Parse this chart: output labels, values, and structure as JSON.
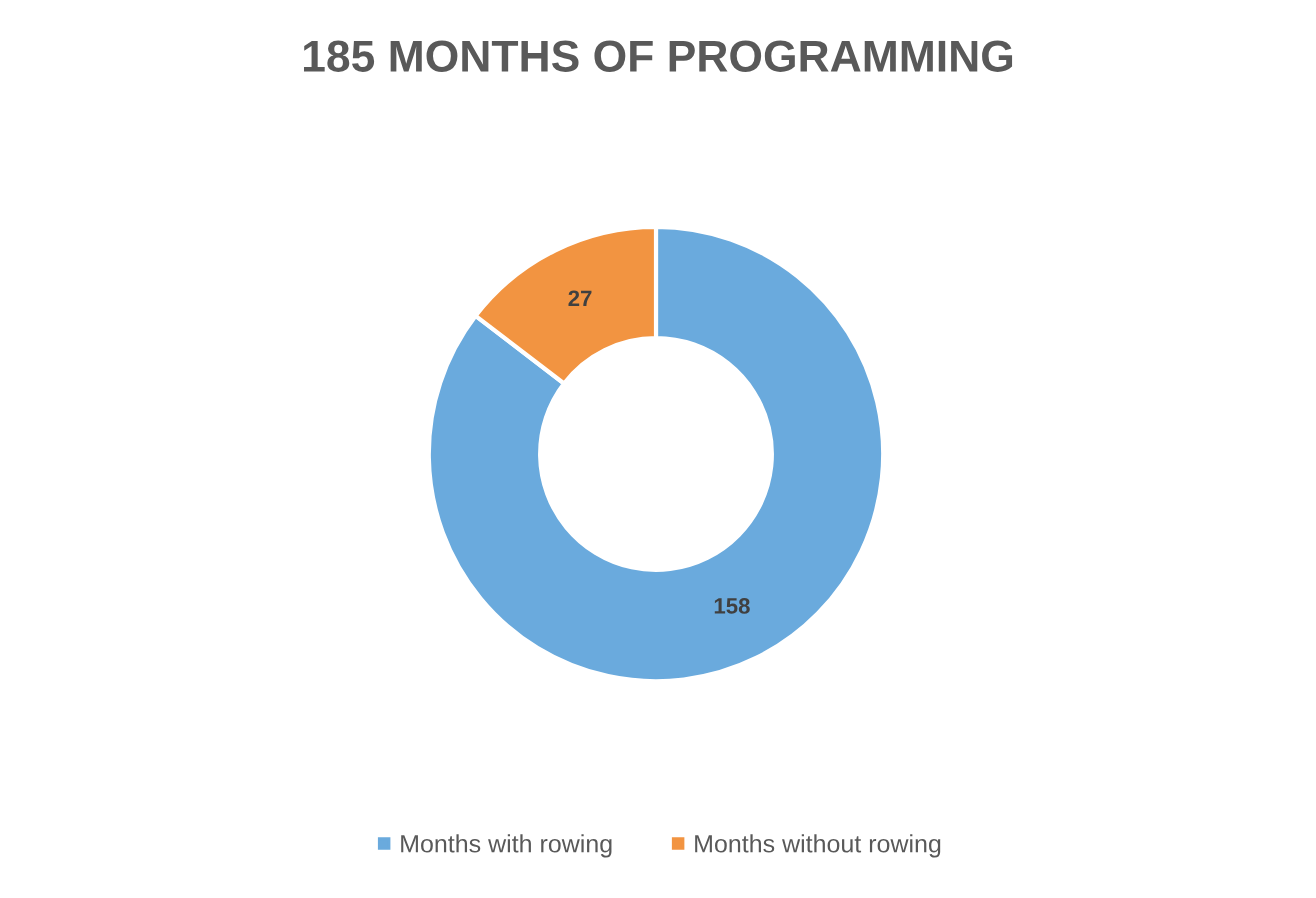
{
  "chart_data": {
    "type": "donut",
    "title": "185 MONTHS OF PROGRAMMING",
    "categories": [
      "Months with rowing",
      "Months without rowing"
    ],
    "values": [
      158,
      27
    ],
    "colors": [
      "#6aaadd",
      "#f29441"
    ],
    "data_labels": true,
    "legend": "bottom"
  }
}
